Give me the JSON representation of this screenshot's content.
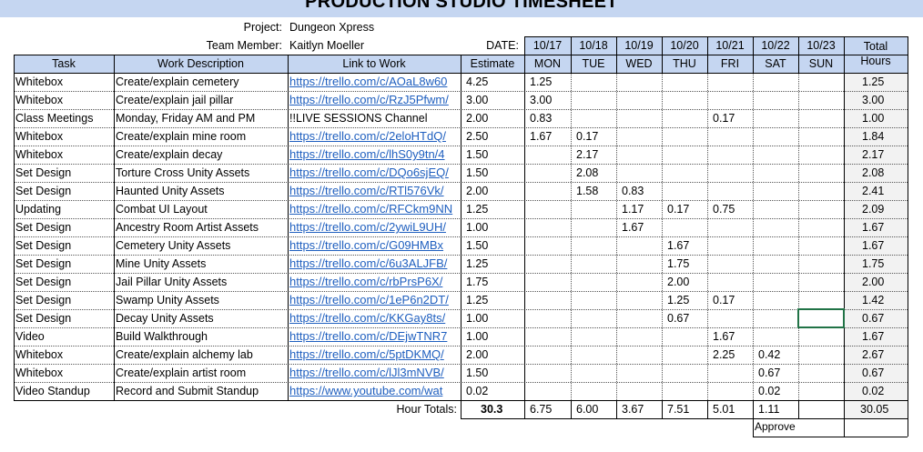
{
  "title": "PRODUCTION STUDIO TIMESHEET",
  "meta": {
    "project_label": "Project:",
    "project_value": "Dungeon Xpress",
    "member_label": "Team Member:",
    "member_value": "Kaitlyn Moeller",
    "date_label": "DATE:"
  },
  "dates": [
    "10/17",
    "10/18",
    "10/19",
    "10/20",
    "10/21",
    "10/22",
    "10/23"
  ],
  "days": [
    "MON",
    "TUE",
    "WED",
    "THU",
    "FRI",
    "SAT",
    "SUN"
  ],
  "headers": {
    "task": "Task",
    "desc": "Work Description",
    "link": "Link to Work",
    "estimate": "Estimate",
    "total_line1": "Total",
    "total_line2": "Hours"
  },
  "rows": [
    {
      "task": "Whitebox",
      "desc": "Create/explain cemetery",
      "link": "https://trello.com/c/AOaL8w60",
      "estimate": "4.25",
      "days": [
        "1.25",
        "",
        "",
        "",
        "",
        "",
        ""
      ],
      "total": "1.25"
    },
    {
      "task": "Whitebox",
      "desc": "Create/explain jail pillar",
      "link": "https://trello.com/c/RzJ5Pfwm/",
      "estimate": "3.00",
      "days": [
        "3.00",
        "",
        "",
        "",
        "",
        "",
        ""
      ],
      "total": "3.00"
    },
    {
      "task": "Class Meetings",
      "desc": "Monday, Friday AM and PM",
      "link": "!!LIVE SESSIONS Channel",
      "estimate": "2.00",
      "days": [
        "0.83",
        "",
        "",
        "",
        "0.17",
        "",
        ""
      ],
      "total": "1.00",
      "plain": true
    },
    {
      "task": "Whitebox",
      "desc": "Create/explain mine room",
      "link": "https://trello.com/c/2eloHTdQ/",
      "estimate": "2.50",
      "days": [
        "1.67",
        "0.17",
        "",
        "",
        "",
        "",
        ""
      ],
      "total": "1.84"
    },
    {
      "task": "Whitebox",
      "desc": "Create/explain decay",
      "link": "https://trello.com/c/lhS0y9tn/4",
      "estimate": "1.50",
      "days": [
        "",
        "2.17",
        "",
        "",
        "",
        "",
        ""
      ],
      "total": "2.17"
    },
    {
      "task": "Set Design",
      "desc": "Torture Cross Unity Assets",
      "link": "https://trello.com/c/DQo6sjEQ/",
      "estimate": "1.50",
      "days": [
        "",
        "2.08",
        "",
        "",
        "",
        "",
        ""
      ],
      "total": "2.08"
    },
    {
      "task": "Set Design",
      "desc": "Haunted Unity Assets",
      "link": "https://trello.com/c/RTl576Vk/",
      "estimate": "2.00",
      "days": [
        "",
        "1.58",
        "0.83",
        "",
        "",
        "",
        ""
      ],
      "total": "2.41"
    },
    {
      "task": "Updating",
      "desc": "Combat UI Layout",
      "link": "https://trello.com/c/RFCkm9NN",
      "estimate": "1.25",
      "days": [
        "",
        "",
        "1.17",
        "0.17",
        "0.75",
        "",
        ""
      ],
      "total": "2.09"
    },
    {
      "task": "Set Design",
      "desc": "Ancestry Room Artist Assets",
      "link": "https://trello.com/c/2ywiL9UH/",
      "estimate": "1.00",
      "days": [
        "",
        "",
        "1.67",
        "",
        "",
        "",
        ""
      ],
      "total": "1.67"
    },
    {
      "task": "Set Design",
      "desc": "Cemetery Unity Assets",
      "link": "https://trello.com/c/G09HMBx",
      "estimate": "1.50",
      "days": [
        "",
        "",
        "",
        "1.67",
        "",
        "",
        ""
      ],
      "total": "1.67"
    },
    {
      "task": "Set Design",
      "desc": "Mine Unity Assets",
      "link": "https://trello.com/c/6u3ALJFB/",
      "estimate": "1.25",
      "days": [
        "",
        "",
        "",
        "1.75",
        "",
        "",
        ""
      ],
      "total": "1.75"
    },
    {
      "task": "Set Design",
      "desc": "Jail Pillar Unity Assets",
      "link": "https://trello.com/c/rbPrsP6X/",
      "estimate": "1.75",
      "days": [
        "",
        "",
        "",
        "2.00",
        "",
        "",
        ""
      ],
      "total": "2.00"
    },
    {
      "task": "Set Design",
      "desc": "Swamp Unity Assets",
      "link": "https://trello.com/c/1eP6n2DT/",
      "estimate": "1.25",
      "days": [
        "",
        "",
        "",
        "1.25",
        "0.17",
        "",
        ""
      ],
      "total": "1.42"
    },
    {
      "task": "Set Design",
      "desc": "Decay Unity Assets",
      "link": "https://trello.com/c/KKGay8ts/",
      "estimate": "1.00",
      "days": [
        "",
        "",
        "",
        "0.67",
        "",
        "",
        ""
      ],
      "total": "0.67"
    },
    {
      "task": "Video",
      "desc": "Build Walkthrough",
      "link": "https://trello.com/c/DEjwTNR7",
      "estimate": "1.00",
      "days": [
        "",
        "",
        "",
        "",
        "1.67",
        "",
        ""
      ],
      "total": "1.67"
    },
    {
      "task": "Whitebox",
      "desc": "Create/explain alchemy lab",
      "link": "https://trello.com/c/5ptDKMQ/",
      "estimate": "2.00",
      "days": [
        "",
        "",
        "",
        "",
        "2.25",
        "0.42",
        ""
      ],
      "total": "2.67"
    },
    {
      "task": "Whitebox",
      "desc": "Create/explain artist room",
      "link": "https://trello.com/c/lJl3mNVB/",
      "estimate": "1.50",
      "days": [
        "",
        "",
        "",
        "",
        "",
        "0.67",
        ""
      ],
      "total": "0.67"
    },
    {
      "task": "Video Standup",
      "desc": "Record and Submit Standup",
      "link": "https://www.youtube.com/wat",
      "estimate": "0.02",
      "days": [
        "",
        "",
        "",
        "",
        "",
        "0.02",
        ""
      ],
      "total": "0.02"
    }
  ],
  "totals": {
    "label": "Hour Totals:",
    "estimate": "30.3",
    "days": [
      "6.75",
      "6.00",
      "3.67",
      "7.51",
      "5.01",
      "1.11",
      ""
    ],
    "total": "30.05"
  },
  "approve": "Approve"
}
